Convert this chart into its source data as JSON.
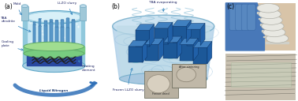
{
  "figsize": [
    3.78,
    1.28
  ],
  "dpi": 100,
  "bg_color": "#ffffff",
  "colors": {
    "bg_panel": "#f5f5f5",
    "cyl_blue_light": "#a8d8e8",
    "cyl_blue_mid": "#70b8d0",
    "cyl_blue_dark": "#4090b0",
    "cyl_fill": "#c8e8f4",
    "cyl_interior": "#b0dce8",
    "green_plate": "#78cc80",
    "green_plate_top": "#a0dd90",
    "dendrite_blue": "#4888c0",
    "coil_dark": "#303030",
    "arrow_blue": "#3080b8",
    "liqN2_blue": "#5090c0",
    "liqN2_dark": "#1a4a80",
    "ann_text": "#1a2060",
    "bowl_blue": "#80b8d0",
    "bowl_fill": "#b0d8ee",
    "block_dark": "#2060a0",
    "block_mid": "#4888c8",
    "block_light": "#70aad8",
    "swirl_blue": "#80b8d8",
    "inset_bg": "#c8c0a8",
    "disc_white": "#e8e8e0",
    "disc_edge": "#a0a090",
    "photo_skin": "#e8c8a0",
    "glove_blue": "#4878b0",
    "text_dark": "#404040",
    "sheet_green": "#b0c8b0"
  },
  "panel_a_label": "(a)",
  "panel_b_label": "(b)",
  "panel_c_label": "(c)",
  "ann_fontsize": 3.1,
  "label_fontsize": 5.5
}
